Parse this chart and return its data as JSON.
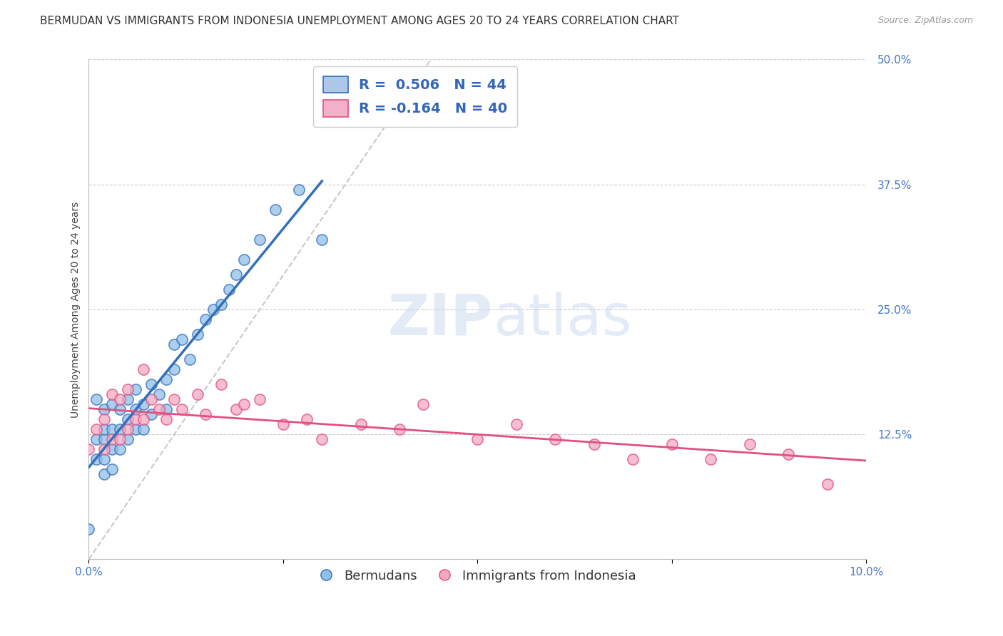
{
  "title": "BERMUDAN VS IMMIGRANTS FROM INDONESIA UNEMPLOYMENT AMONG AGES 20 TO 24 YEARS CORRELATION CHART",
  "source": "Source: ZipAtlas.com",
  "ylabel_label": "Unemployment Among Ages 20 to 24 years",
  "xmin": 0.0,
  "xmax": 0.1,
  "ymin": 0.0,
  "ymax": 0.5,
  "yticks": [
    0.0,
    0.125,
    0.25,
    0.375,
    0.5
  ],
  "ytick_labels": [
    "",
    "12.5%",
    "25.0%",
    "37.5%",
    "50.0%"
  ],
  "legend_label1": "R =  0.506   N = 44",
  "legend_label2": "R = -0.164   N = 40",
  "legend_color1": "#adc8e8",
  "legend_color2": "#f4b0c8",
  "scatter_color1": "#90c0e8",
  "scatter_color2": "#f4a8c0",
  "line_color1": "#3370bb",
  "line_color2": "#e05080",
  "ref_line_color": "#c8c8c8",
  "watermark_zip": "ZIP",
  "watermark_atlas": "atlas",
  "watermark_color_zip": "#c8d8ee",
  "watermark_color_atlas": "#c8d8ee",
  "background_color": "#ffffff",
  "grid_color": "#cccccc",
  "tick_color": "#4477cc",
  "blue_x": [
    0.0,
    0.001,
    0.001,
    0.001,
    0.002,
    0.002,
    0.002,
    0.002,
    0.002,
    0.003,
    0.003,
    0.003,
    0.003,
    0.004,
    0.004,
    0.004,
    0.005,
    0.005,
    0.005,
    0.006,
    0.006,
    0.006,
    0.007,
    0.007,
    0.008,
    0.008,
    0.009,
    0.01,
    0.01,
    0.011,
    0.011,
    0.012,
    0.013,
    0.014,
    0.015,
    0.016,
    0.017,
    0.018,
    0.019,
    0.02,
    0.022,
    0.024,
    0.027,
    0.03
  ],
  "blue_y": [
    0.03,
    0.1,
    0.12,
    0.16,
    0.085,
    0.1,
    0.12,
    0.13,
    0.15,
    0.09,
    0.11,
    0.13,
    0.155,
    0.11,
    0.13,
    0.15,
    0.12,
    0.14,
    0.16,
    0.13,
    0.15,
    0.17,
    0.13,
    0.155,
    0.145,
    0.175,
    0.165,
    0.15,
    0.18,
    0.19,
    0.215,
    0.22,
    0.2,
    0.225,
    0.24,
    0.25,
    0.255,
    0.27,
    0.285,
    0.3,
    0.32,
    0.35,
    0.37,
    0.32
  ],
  "pink_x": [
    0.0,
    0.001,
    0.002,
    0.002,
    0.003,
    0.003,
    0.004,
    0.004,
    0.005,
    0.005,
    0.006,
    0.007,
    0.007,
    0.008,
    0.009,
    0.01,
    0.011,
    0.012,
    0.014,
    0.015,
    0.017,
    0.019,
    0.02,
    0.022,
    0.025,
    0.028,
    0.03,
    0.035,
    0.04,
    0.043,
    0.05,
    0.055,
    0.06,
    0.065,
    0.07,
    0.075,
    0.08,
    0.085,
    0.09,
    0.095
  ],
  "pink_y": [
    0.11,
    0.13,
    0.11,
    0.14,
    0.12,
    0.165,
    0.12,
    0.16,
    0.13,
    0.17,
    0.14,
    0.14,
    0.19,
    0.16,
    0.15,
    0.14,
    0.16,
    0.15,
    0.165,
    0.145,
    0.175,
    0.15,
    0.155,
    0.16,
    0.135,
    0.14,
    0.12,
    0.135,
    0.13,
    0.155,
    0.12,
    0.135,
    0.12,
    0.115,
    0.1,
    0.115,
    0.1,
    0.115,
    0.105,
    0.075
  ],
  "title_fontsize": 11,
  "axis_label_fontsize": 10,
  "tick_fontsize": 11,
  "source_fontsize": 9
}
